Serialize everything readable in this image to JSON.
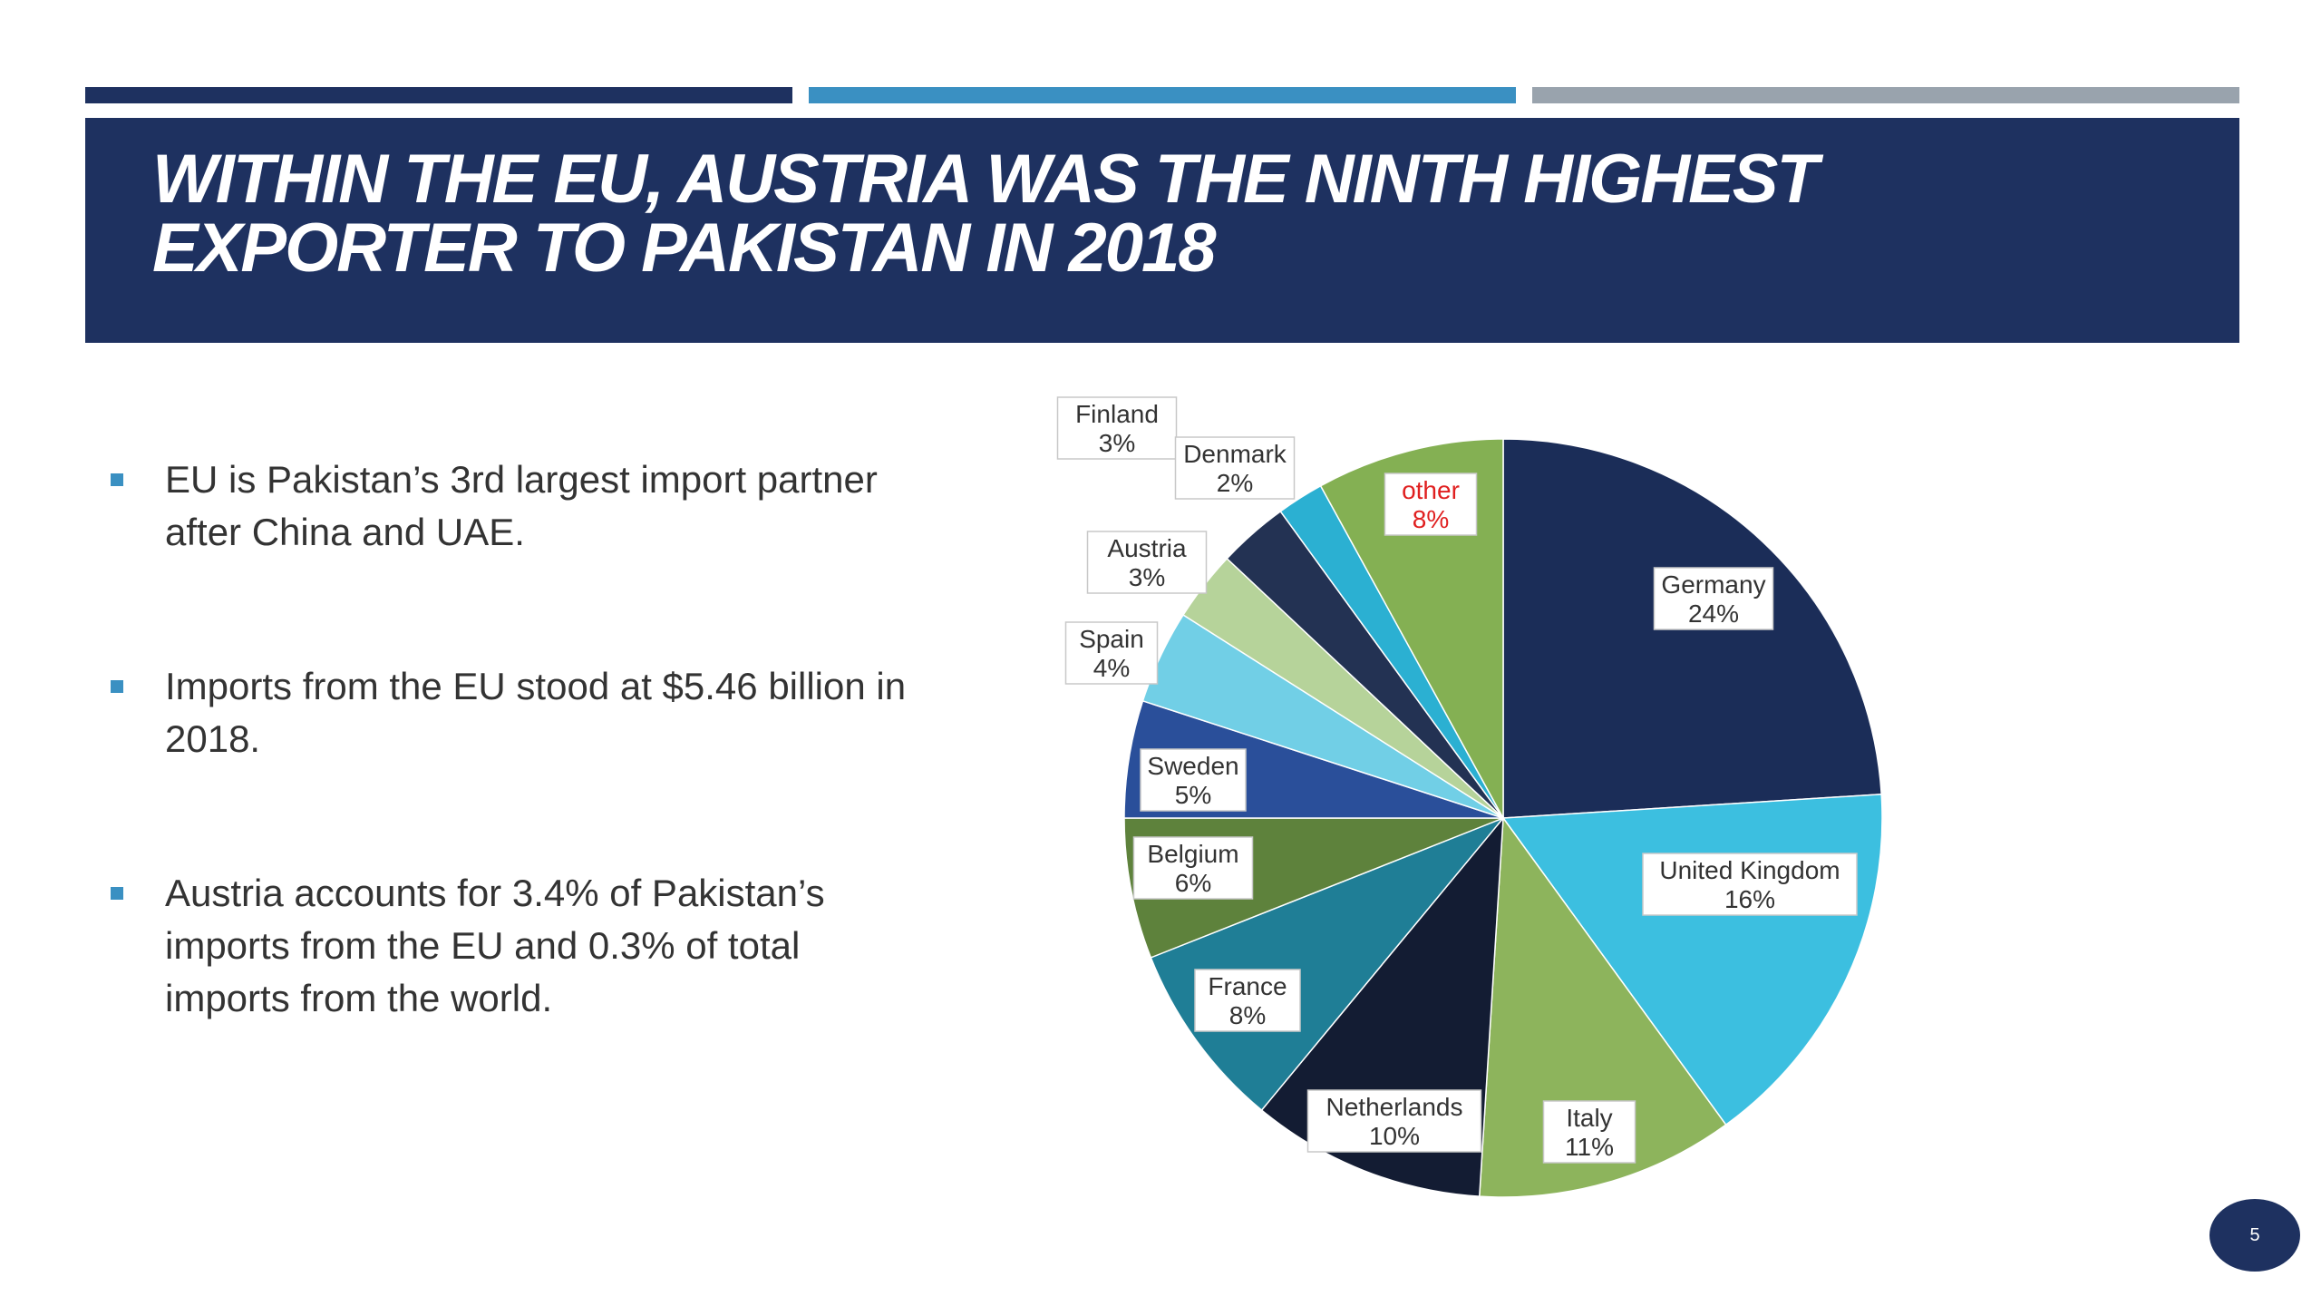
{
  "slide": {
    "title": "Within the EU,  Austria was the ninth highest\nexporter to Pakistan in 2018",
    "page_number": "5"
  },
  "bullets": [
    "EU is Pakistan’s 3rd largest import partner after China and UAE.",
    "Imports from the EU stood at $5.46 billion in 2018.",
    "Austria accounts for 3.4% of Pakistan’s imports from the EU and 0.3% of total imports from the world."
  ],
  "colors": {
    "navy": "#1e3160",
    "accent_blue": "#3a90c2",
    "gray": "#99a3ad",
    "other_label": "#e02020"
  },
  "chart_data": {
    "type": "pie",
    "title": "",
    "slices": [
      {
        "label": "Germany",
        "value": 24,
        "value_label": "24%",
        "color": "#1b2d58"
      },
      {
        "label": "United Kingdom",
        "value": 16,
        "value_label": "16%",
        "color": "#3cbfe0"
      },
      {
        "label": "Italy",
        "value": 11,
        "value_label": "11%",
        "color": "#8db45c"
      },
      {
        "label": "Netherlands",
        "value": 10,
        "value_label": "10%",
        "color": "#131c33"
      },
      {
        "label": "France",
        "value": 8,
        "value_label": "8%",
        "color": "#1f7e96"
      },
      {
        "label": "Belgium",
        "value": 6,
        "value_label": "6%",
        "color": "#5e823c"
      },
      {
        "label": "Sweden",
        "value": 5,
        "value_label": "5%",
        "color": "#2a4f9a"
      },
      {
        "label": "Spain",
        "value": 4,
        "value_label": "4%",
        "color": "#71cfe6"
      },
      {
        "label": "Austria",
        "value": 3,
        "value_label": "3%",
        "color": "#b6d39a"
      },
      {
        "label": "Finland",
        "value": 3,
        "value_label": "3%",
        "color": "#233253"
      },
      {
        "label": "Denmark",
        "value": 2,
        "value_label": "2%",
        "color": "#2bb0d2"
      },
      {
        "label": "other",
        "value": 8,
        "value_label": "8%",
        "color": "#84b053"
      }
    ]
  }
}
